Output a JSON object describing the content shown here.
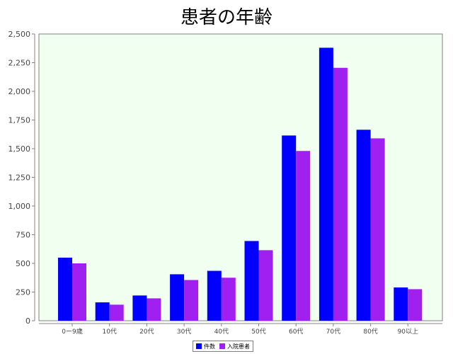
{
  "chart_data": {
    "type": "bar",
    "title": "患者の年齢",
    "categories": [
      "0ー9歳",
      "10代",
      "20代",
      "30代",
      "40代",
      "50代",
      "60代",
      "70代",
      "80代",
      "90以上"
    ],
    "series": [
      {
        "name": "件数",
        "color": "#0000ff",
        "values": [
          550,
          160,
          220,
          405,
          435,
          695,
          1615,
          2380,
          1665,
          290
        ]
      },
      {
        "name": "入院患者",
        "color": "#a020f0",
        "values": [
          500,
          140,
          195,
          355,
          375,
          615,
          1480,
          2205,
          1590,
          275
        ]
      }
    ],
    "ylim": [
      0,
      2500
    ],
    "yticks": [
      0,
      250,
      500,
      750,
      1000,
      1250,
      1500,
      1750,
      2000,
      2250,
      2500
    ],
    "ytick_labels": [
      "0",
      "250",
      "500",
      "750",
      "1,000",
      "1,250",
      "1,500",
      "1,750",
      "2,000",
      "2,250",
      "2,500"
    ],
    "xlabel": "",
    "ylabel": "",
    "legend_position": "bottom",
    "plot_background": "#f0fff0",
    "grid": false
  }
}
